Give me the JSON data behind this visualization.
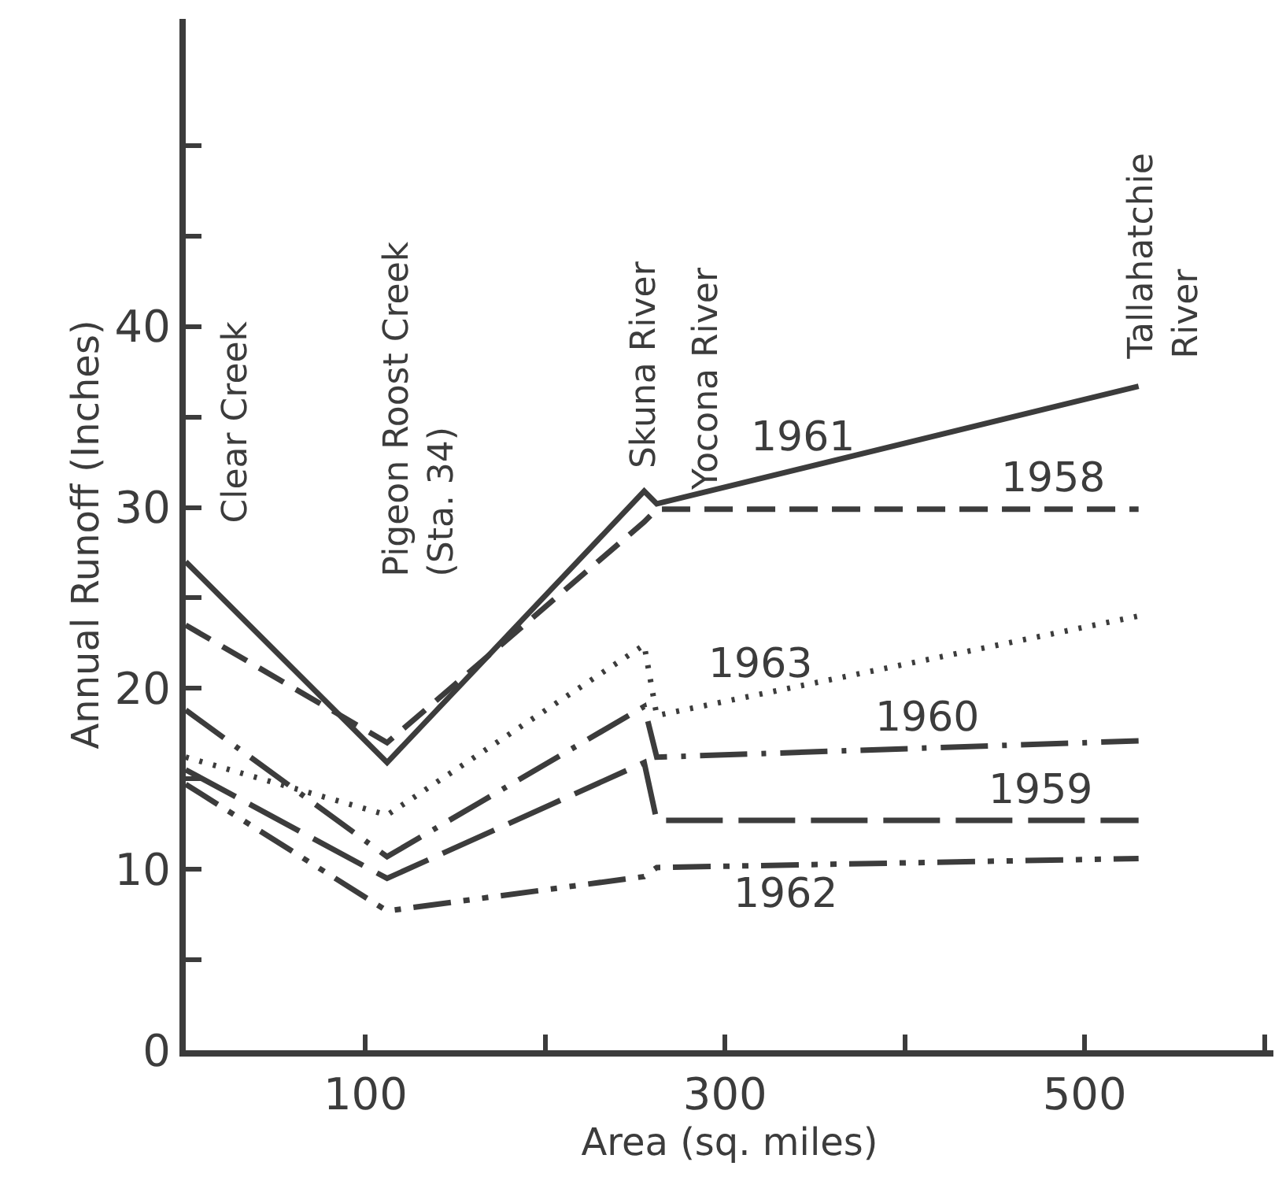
{
  "chart_data": {
    "type": "line",
    "xlabel": "Area (sq. miles)",
    "ylabel": "Annual Runoff (Inches)",
    "x": [
      0,
      112,
      255,
      262,
      530
    ],
    "series": [
      {
        "name": "1961",
        "color": "#3c3c3c",
        "line_style": "solid",
        "values": [
          27,
          15.9,
          30.9,
          30.2,
          36.7
        ]
      },
      {
        "name": "1958",
        "color": "#3c3c3c",
        "line_style": "dashed",
        "values": [
          23.5,
          17,
          29.2,
          29.9,
          29.9
        ]
      },
      {
        "name": "1963",
        "color": "#3c3c3c",
        "line_style": "dotted",
        "values": [
          16.2,
          13,
          22.4,
          18.5,
          24
        ]
      },
      {
        "name": "1960",
        "color": "#3c3c3c",
        "line_style": "longdashdot",
        "values": [
          18.8,
          10.7,
          19,
          16.2,
          17.1
        ]
      },
      {
        "name": "1959",
        "color": "#3c3c3c",
        "line_style": "longdash",
        "values": [
          15.5,
          9.5,
          15.9,
          12.7,
          12.7
        ]
      },
      {
        "name": "1962",
        "color": "#3c3c3c",
        "line_style": "dashdotdot",
        "values": [
          14.7,
          7.7,
          9.6,
          10.1,
          10.6
        ]
      }
    ],
    "annotations": [
      "Clear Creek",
      "Pigeon Roost Creek\n(Sta. 34)",
      "Skuna River",
      "Yocona River",
      "Tallahatchie\nRiver"
    ],
    "xlim": [
      0,
      605
    ],
    "xticks": [
      100,
      {
        "value": 200,
        "label": null
      },
      300,
      {
        "value": 400,
        "label": null
      },
      500,
      {
        "value": 600,
        "label": null
      }
    ],
    "ylim": [
      0,
      57
    ],
    "yticks": [
      0,
      {
        "value": 5,
        "label": null
      },
      10,
      {
        "value": 15,
        "label": null
      },
      20,
      {
        "value": 25,
        "label": null
      },
      30,
      {
        "value": 35,
        "label": null
      },
      40,
      {
        "value": 45,
        "label": null
      },
      {
        "value": 50,
        "label": null
      }
    ],
    "grid": false,
    "legend": false,
    "marker": "none"
  }
}
